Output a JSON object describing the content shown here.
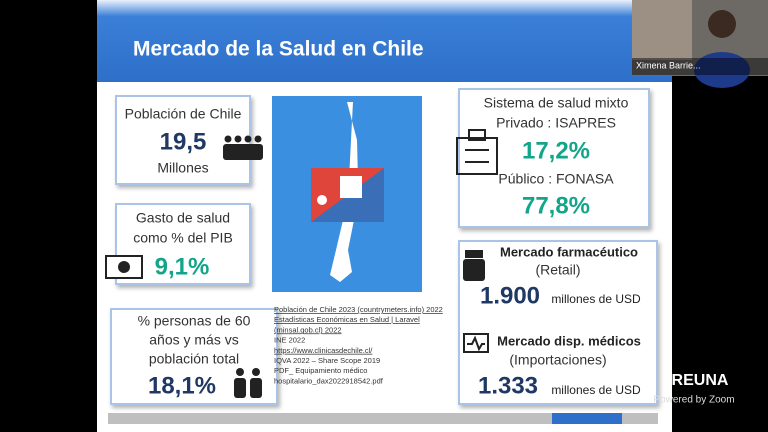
{
  "slide": {
    "title": "Mercado de la Salud en Chile",
    "population": {
      "label": "Población de Chile",
      "value": "19,5",
      "unit": "Millones"
    },
    "health_spending": {
      "line1": "Gasto de salud",
      "line2": "como % del PIB",
      "value": "9,1%"
    },
    "elderly": {
      "line1": "% personas de 60",
      "line2": "años y más vs",
      "line3": "población total",
      "value": "18,1%"
    },
    "sources": [
      "Población de Chile 2023 (countrymeters.info) 2022",
      "Estadísticas Económicas en Salud | Laravel",
      "(minsal.gob.cl) 2022",
      "INE 2022",
      "https://www.clinicasdechile.cl/",
      "IQVA 2022 – Share Scope 2019",
      "PDF_ Equipamiento médico",
      "hospitalario_dax2022918542.pdf"
    ],
    "system": {
      "line1": "Sistema de salud mixto",
      "private_label": "Privado : ISAPRES",
      "private_value": "17,2%",
      "public_label": "Público : FONASA",
      "public_value": "77,8%"
    },
    "pharma": {
      "title": "Mercado farmacéutico",
      "subtitle": "(Retail)",
      "value": "1.900",
      "unit": "millones de USD"
    },
    "devices": {
      "title": "Mercado disp. médicos",
      "subtitle": "(Importaciones)",
      "value": "1.333",
      "unit": "millones de USD"
    }
  },
  "participant": {
    "name": "Ximena Barrie..."
  },
  "branding": {
    "logo": "REUNA",
    "powered": "Powered by Zoom"
  }
}
